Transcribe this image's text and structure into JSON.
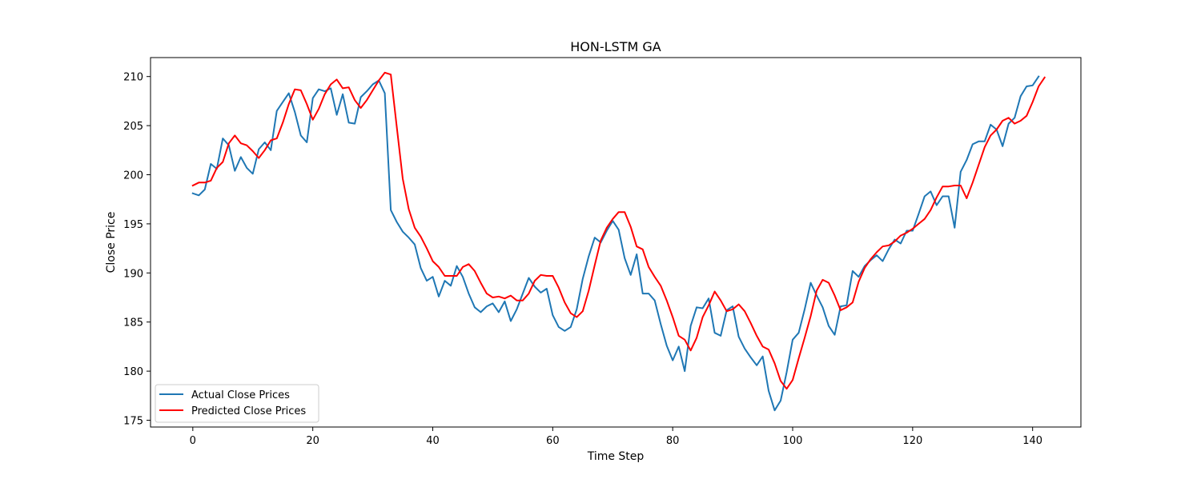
{
  "chart_data": {
    "type": "line",
    "title": "HON-LSTM GA",
    "xlabel": "Time Step",
    "ylabel": "Close Price",
    "xlim": [
      -7.05,
      148.05
    ],
    "ylim": [
      174.31,
      211.93
    ],
    "xticks": [
      0,
      20,
      40,
      60,
      80,
      100,
      120,
      140
    ],
    "yticks": [
      175,
      180,
      185,
      190,
      195,
      200,
      205,
      210
    ],
    "grid": false,
    "legend_position": "lower-left",
    "colors": {
      "actual": "#1f77b4",
      "predicted": "#ff0000"
    },
    "series": [
      {
        "name": "Actual Close Prices",
        "color": "#1f77b4",
        "values": [
          198.1,
          197.9,
          198.5,
          201.1,
          200.6,
          203.7,
          203.0,
          200.4,
          201.8,
          200.7,
          200.1,
          202.6,
          203.3,
          202.5,
          206.5,
          207.4,
          208.3,
          206.4,
          204.0,
          203.3,
          207.8,
          208.7,
          208.5,
          208.8,
          206.1,
          208.2,
          205.3,
          205.2,
          207.9,
          208.5,
          209.2,
          209.6,
          208.3,
          196.4,
          195.2,
          194.2,
          193.6,
          192.9,
          190.5,
          189.2,
          189.6,
          187.6,
          189.2,
          188.7,
          190.7,
          189.6,
          187.9,
          186.5,
          186.0,
          186.6,
          186.9,
          186.0,
          187.1,
          185.1,
          186.3,
          187.9,
          189.5,
          188.6,
          188.0,
          188.4,
          185.7,
          184.5,
          184.1,
          184.5,
          186.3,
          189.4,
          191.7,
          193.6,
          193.1,
          194.3,
          195.3,
          194.4,
          191.5,
          189.8,
          191.9,
          187.9,
          187.9,
          187.2,
          184.8,
          182.6,
          181.1,
          182.5,
          180.0,
          184.6,
          186.5,
          186.4,
          187.4,
          183.9,
          183.6,
          186.2,
          186.6,
          183.5,
          182.3,
          181.4,
          180.6,
          181.5,
          178.0,
          176.0,
          177.0,
          179.9,
          183.2,
          183.9,
          186.3,
          189.0,
          187.7,
          186.5,
          184.6,
          183.7,
          186.6,
          186.7,
          190.2,
          189.6,
          190.7,
          191.3,
          191.8,
          191.2,
          192.4,
          193.4,
          193.0,
          194.3,
          194.3,
          196.0,
          197.8,
          198.3,
          196.9,
          197.8,
          197.8,
          194.6,
          200.3,
          201.5,
          203.1,
          203.4,
          203.4,
          205.1,
          204.6,
          202.9,
          205.2,
          205.8,
          208.0,
          209.0,
          209.1,
          210.0
        ]
      },
      {
        "name": "Predicted Close Prices",
        "color": "#ff0000",
        "values": [
          198.9,
          199.2,
          199.2,
          199.4,
          200.7,
          201.3,
          203.2,
          204.0,
          203.2,
          203.0,
          202.4,
          201.7,
          202.5,
          203.5,
          203.7,
          205.3,
          207.2,
          208.7,
          208.6,
          207.2,
          205.6,
          206.7,
          208.2,
          209.2,
          209.7,
          208.8,
          208.9,
          207.6,
          206.8,
          207.6,
          208.6,
          209.6,
          210.4,
          210.2,
          204.9,
          199.6,
          196.5,
          194.6,
          193.7,
          192.5,
          191.2,
          190.6,
          189.7,
          189.7,
          189.7,
          190.6,
          190.9,
          190.2,
          189.0,
          187.9,
          187.5,
          187.6,
          187.4,
          187.7,
          187.2,
          187.2,
          187.9,
          189.2,
          189.8,
          189.7,
          189.7,
          188.5,
          187.0,
          185.9,
          185.5,
          186.1,
          188.2,
          190.8,
          193.3,
          194.6,
          195.5,
          196.2,
          196.2,
          194.7,
          192.7,
          192.4,
          190.6,
          189.6,
          188.7,
          187.2,
          185.5,
          183.6,
          183.2,
          182.1,
          183.4,
          185.5,
          186.7,
          188.1,
          187.2,
          186.1,
          186.3,
          186.8,
          186.1,
          184.9,
          183.6,
          182.5,
          182.2,
          180.8,
          179.0,
          178.2,
          179.1,
          181.3,
          183.4,
          185.6,
          188.2,
          189.3,
          189.0,
          187.7,
          186.2,
          186.5,
          187.0,
          189.1,
          190.5,
          191.4,
          192.1,
          192.7,
          192.8,
          193.2,
          193.8,
          194.1,
          194.5,
          195.0,
          195.5,
          196.4,
          197.7,
          198.8,
          198.8,
          198.9,
          198.9,
          197.6,
          199.2,
          201.0,
          202.8,
          204.0,
          204.6,
          205.5,
          205.8,
          205.2,
          205.5,
          206.0,
          207.4,
          209.0,
          209.9
        ]
      }
    ]
  }
}
